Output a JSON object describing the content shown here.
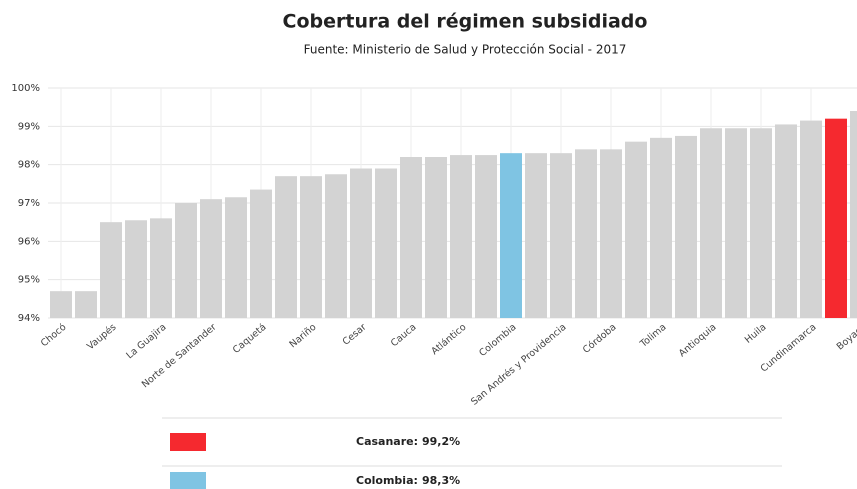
{
  "chart_data": {
    "type": "bar",
    "title": "Cobertura del régimen subsidiado",
    "subtitle": "Fuente: Ministerio de Salud y Protección Social - 2017",
    "categories": [
      "Chocó",
      null,
      "Vaupés",
      null,
      "La Guajira",
      null,
      "Norte de Santander",
      null,
      "Caquetá",
      null,
      "Nariño",
      null,
      "Cesar",
      null,
      "Cauca",
      null,
      "Atlántico",
      null,
      "Colombia",
      null,
      "San Andrés y Providencia",
      null,
      "Córdoba",
      null,
      "Tolima",
      null,
      "Antioquia",
      null,
      "Huila",
      null,
      "Cundinamarca",
      null,
      "Boyacá"
    ],
    "values": [
      94.7,
      94.7,
      96.5,
      96.55,
      96.6,
      97.0,
      97.1,
      97.15,
      97.35,
      97.7,
      97.7,
      97.75,
      97.9,
      97.9,
      98.2,
      98.2,
      98.25,
      98.25,
      98.3,
      98.3,
      98.3,
      98.4,
      98.4,
      98.6,
      98.7,
      98.75,
      98.95,
      98.95,
      98.95,
      99.05,
      99.15,
      99.2,
      99.4
    ],
    "colors": [
      "#d3d3d3",
      "#d3d3d3",
      "#d3d3d3",
      "#d3d3d3",
      "#d3d3d3",
      "#d3d3d3",
      "#d3d3d3",
      "#d3d3d3",
      "#d3d3d3",
      "#d3d3d3",
      "#d3d3d3",
      "#d3d3d3",
      "#d3d3d3",
      "#d3d3d3",
      "#d3d3d3",
      "#d3d3d3",
      "#d3d3d3",
      "#d3d3d3",
      "#7fc4e3",
      "#d3d3d3",
      "#d3d3d3",
      "#d3d3d3",
      "#d3d3d3",
      "#d3d3d3",
      "#d3d3d3",
      "#d3d3d3",
      "#d3d3d3",
      "#d3d3d3",
      "#d3d3d3",
      "#d3d3d3",
      "#d3d3d3",
      "#f5292f",
      "#d3d3d3"
    ],
    "ylim": [
      94,
      100
    ],
    "yticks": [
      {
        "value": 94,
        "label": "94%"
      },
      {
        "value": 95,
        "label": "95%"
      },
      {
        "value": 96,
        "label": "96%"
      },
      {
        "value": 97,
        "label": "97%"
      },
      {
        "value": 98,
        "label": "98%"
      },
      {
        "value": 99,
        "label": "99%"
      },
      {
        "value": 100,
        "label": "100%"
      }
    ],
    "grid": true,
    "legend_table": [
      {
        "label": "Casanare:",
        "value": "99,2%",
        "color": "#f5292f"
      },
      {
        "label": "Colombia:",
        "value": "98,3%",
        "color": "#7fc4e3"
      }
    ]
  }
}
